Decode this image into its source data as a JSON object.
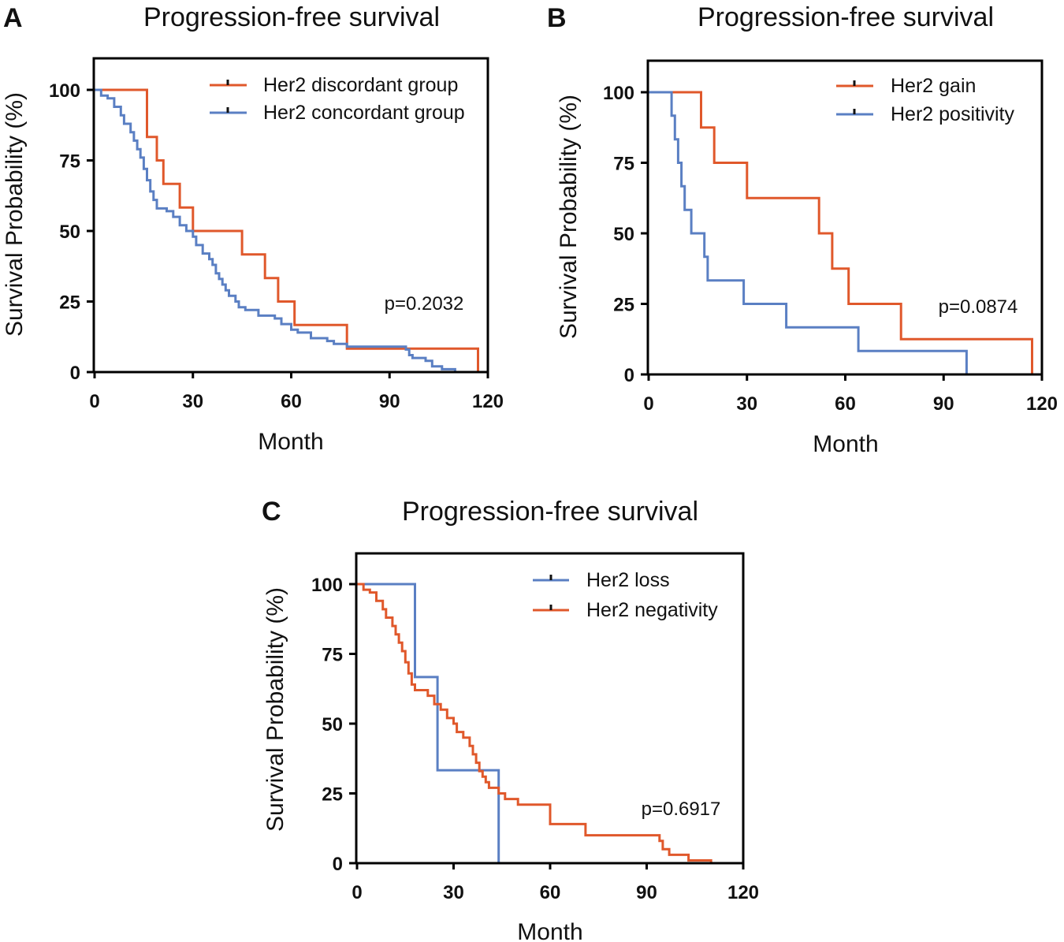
{
  "colors": {
    "orange": "#E0582B",
    "blue": "#5A7FC3",
    "axis": "#000000"
  },
  "chart_data": [
    {
      "type": "line",
      "panel": "A",
      "title": "Progression-free survival",
      "xlabel": "Month",
      "ylabel": "Survival Probability (%)",
      "xlim": [
        0,
        120
      ],
      "ylim": [
        0,
        110
      ],
      "xticks": [
        0,
        30,
        60,
        90,
        120
      ],
      "yticks": [
        0,
        25,
        50,
        75,
        100
      ],
      "p_value": "p=0.2032",
      "legend_position": "top-right",
      "series": [
        {
          "name": "Her2 discordant group",
          "color": "#E0582B",
          "points": [
            [
              0,
              100
            ],
            [
              16,
              100
            ],
            [
              16,
              83.3
            ],
            [
              19,
              83.3
            ],
            [
              19,
              75
            ],
            [
              21,
              75
            ],
            [
              21,
              66.7
            ],
            [
              26,
              66.7
            ],
            [
              26,
              58.3
            ],
            [
              30,
              58.3
            ],
            [
              30,
              50
            ],
            [
              45,
              50
            ],
            [
              45,
              41.7
            ],
            [
              52,
              41.7
            ],
            [
              52,
              33.3
            ],
            [
              56,
              33.3
            ],
            [
              56,
              25
            ],
            [
              61,
              25
            ],
            [
              61,
              16.7
            ],
            [
              77,
              16.7
            ],
            [
              77,
              8.3
            ],
            [
              117,
              8.3
            ],
            [
              117,
              0
            ]
          ]
        },
        {
          "name": "Her2 concordant group",
          "color": "#5A7FC3",
          "points": [
            [
              0,
              100
            ],
            [
              2,
              100
            ],
            [
              2,
              98
            ],
            [
              4,
              98
            ],
            [
              4,
              97
            ],
            [
              6,
              97
            ],
            [
              6,
              94
            ],
            [
              8,
              94
            ],
            [
              8,
              91
            ],
            [
              9,
              91
            ],
            [
              9,
              88
            ],
            [
              11,
              88
            ],
            [
              11,
              85
            ],
            [
              12,
              85
            ],
            [
              12,
              82
            ],
            [
              13,
              82
            ],
            [
              13,
              79
            ],
            [
              14,
              79
            ],
            [
              14,
              76
            ],
            [
              15,
              76
            ],
            [
              15,
              72
            ],
            [
              16,
              72
            ],
            [
              16,
              68
            ],
            [
              17,
              68
            ],
            [
              17,
              64
            ],
            [
              18,
              64
            ],
            [
              18,
              61
            ],
            [
              19,
              61
            ],
            [
              19,
              58
            ],
            [
              22,
              58
            ],
            [
              22,
              57
            ],
            [
              24,
              57
            ],
            [
              24,
              55
            ],
            [
              26,
              55
            ],
            [
              26,
              52
            ],
            [
              28,
              52
            ],
            [
              28,
              50
            ],
            [
              30,
              50
            ],
            [
              30,
              48
            ],
            [
              31,
              48
            ],
            [
              31,
              45
            ],
            [
              33,
              45
            ],
            [
              33,
              42
            ],
            [
              35,
              42
            ],
            [
              35,
              40
            ],
            [
              36,
              40
            ],
            [
              36,
              38
            ],
            [
              37,
              38
            ],
            [
              37,
              35
            ],
            [
              38,
              35
            ],
            [
              38,
              33
            ],
            [
              39,
              33
            ],
            [
              39,
              31
            ],
            [
              40,
              31
            ],
            [
              40,
              29
            ],
            [
              41,
              29
            ],
            [
              41,
              27
            ],
            [
              43,
              27
            ],
            [
              43,
              25
            ],
            [
              44,
              25
            ],
            [
              44,
              23
            ],
            [
              46,
              23
            ],
            [
              46,
              22
            ],
            [
              50,
              22
            ],
            [
              50,
              20
            ],
            [
              55,
              20
            ],
            [
              55,
              19
            ],
            [
              57,
              19
            ],
            [
              57,
              17
            ],
            [
              60,
              17
            ],
            [
              60,
              15
            ],
            [
              62,
              15
            ],
            [
              62,
              14
            ],
            [
              66,
              14
            ],
            [
              66,
              12
            ],
            [
              71,
              12
            ],
            [
              71,
              11
            ],
            [
              73,
              11
            ],
            [
              73,
              10
            ],
            [
              77,
              10
            ],
            [
              77,
              9
            ],
            [
              95,
              9
            ],
            [
              95,
              8
            ],
            [
              96,
              8
            ],
            [
              96,
              6
            ],
            [
              97,
              6
            ],
            [
              97,
              5
            ],
            [
              101,
              5
            ],
            [
              101,
              4
            ],
            [
              103,
              4
            ],
            [
              103,
              2
            ],
            [
              106,
              2
            ],
            [
              106,
              1
            ],
            [
              110,
              1
            ],
            [
              110,
              0
            ]
          ]
        }
      ]
    },
    {
      "type": "line",
      "panel": "B",
      "title": "Progression-free survival",
      "xlabel": "Month",
      "ylabel": "Survival Probability (%)",
      "xlim": [
        0,
        120
      ],
      "ylim": [
        0,
        110
      ],
      "xticks": [
        0,
        30,
        60,
        90,
        120
      ],
      "yticks": [
        0,
        25,
        50,
        75,
        100
      ],
      "p_value": "p=0.0874",
      "legend_position": "top-right",
      "series": [
        {
          "name": "Her2 gain",
          "color": "#E0582B",
          "points": [
            [
              0,
              100
            ],
            [
              16,
              100
            ],
            [
              16,
              87.5
            ],
            [
              20,
              87.5
            ],
            [
              20,
              75
            ],
            [
              30,
              75
            ],
            [
              30,
              62.5
            ],
            [
              52,
              62.5
            ],
            [
              52,
              50
            ],
            [
              56,
              50
            ],
            [
              56,
              37.5
            ],
            [
              61,
              37.5
            ],
            [
              61,
              25
            ],
            [
              77,
              25
            ],
            [
              77,
              12.5
            ],
            [
              117,
              12.5
            ],
            [
              117,
              0
            ]
          ]
        },
        {
          "name": "Her2 positivity",
          "color": "#5A7FC3",
          "points": [
            [
              0,
              100
            ],
            [
              7,
              100
            ],
            [
              7,
              91.7
            ],
            [
              8,
              91.7
            ],
            [
              8,
              83.3
            ],
            [
              9,
              83.3
            ],
            [
              9,
              75
            ],
            [
              10,
              75
            ],
            [
              10,
              66.7
            ],
            [
              11,
              66.7
            ],
            [
              11,
              58.3
            ],
            [
              13,
              58.3
            ],
            [
              13,
              50
            ],
            [
              17,
              50
            ],
            [
              17,
              41.7
            ],
            [
              18,
              41.7
            ],
            [
              18,
              33.3
            ],
            [
              29,
              33.3
            ],
            [
              29,
              25
            ],
            [
              42,
              25
            ],
            [
              42,
              16.7
            ],
            [
              64,
              16.7
            ],
            [
              64,
              8.3
            ],
            [
              97,
              8.3
            ],
            [
              97,
              0
            ]
          ]
        }
      ]
    },
    {
      "type": "line",
      "panel": "C",
      "title": "Progression-free survival",
      "xlabel": "Month",
      "ylabel": "Survival Probability (%)",
      "xlim": [
        0,
        120
      ],
      "ylim": [
        0,
        110
      ],
      "xticks": [
        0,
        30,
        60,
        90,
        120
      ],
      "yticks": [
        0,
        25,
        50,
        75,
        100
      ],
      "p_value": "p=0.6917",
      "legend_position": "top-right",
      "series": [
        {
          "name": "Her2 loss",
          "color": "#5A7FC3",
          "points": [
            [
              0,
              100
            ],
            [
              18,
              100
            ],
            [
              18,
              66.7
            ],
            [
              25,
              66.7
            ],
            [
              25,
              33.3
            ],
            [
              44,
              33.3
            ],
            [
              44,
              0
            ]
          ]
        },
        {
          "name": "Her2 negativity",
          "color": "#E0582B",
          "points": [
            [
              0,
              100
            ],
            [
              2,
              100
            ],
            [
              2,
              98
            ],
            [
              4,
              98
            ],
            [
              4,
              97
            ],
            [
              6,
              97
            ],
            [
              6,
              94
            ],
            [
              8,
              94
            ],
            [
              8,
              91
            ],
            [
              9,
              91
            ],
            [
              9,
              88
            ],
            [
              11,
              88
            ],
            [
              11,
              85
            ],
            [
              12,
              85
            ],
            [
              12,
              82
            ],
            [
              13,
              82
            ],
            [
              13,
              79
            ],
            [
              14,
              79
            ],
            [
              14,
              76
            ],
            [
              15,
              76
            ],
            [
              15,
              72
            ],
            [
              16,
              72
            ],
            [
              16,
              68
            ],
            [
              17,
              68
            ],
            [
              17,
              64
            ],
            [
              18,
              64
            ],
            [
              18,
              62
            ],
            [
              22,
              62
            ],
            [
              22,
              60
            ],
            [
              24,
              60
            ],
            [
              24,
              57
            ],
            [
              26,
              57
            ],
            [
              26,
              55
            ],
            [
              28,
              55
            ],
            [
              28,
              52
            ],
            [
              30,
              52
            ],
            [
              30,
              50
            ],
            [
              31,
              50
            ],
            [
              31,
              47
            ],
            [
              33,
              47
            ],
            [
              33,
              45
            ],
            [
              35,
              45
            ],
            [
              35,
              42
            ],
            [
              36,
              42
            ],
            [
              36,
              39
            ],
            [
              37,
              39
            ],
            [
              37,
              36
            ],
            [
              38,
              36
            ],
            [
              38,
              33
            ],
            [
              39,
              33
            ],
            [
              39,
              31
            ],
            [
              40,
              31
            ],
            [
              40,
              29
            ],
            [
              41,
              29
            ],
            [
              41,
              27
            ],
            [
              44,
              27
            ],
            [
              44,
              25
            ],
            [
              46,
              25
            ],
            [
              46,
              23
            ],
            [
              50,
              23
            ],
            [
              50,
              21
            ],
            [
              60,
              21
            ],
            [
              60,
              14
            ],
            [
              71,
              14
            ],
            [
              71,
              10
            ],
            [
              94,
              10
            ],
            [
              94,
              8
            ],
            [
              95,
              8
            ],
            [
              95,
              5
            ],
            [
              97,
              5
            ],
            [
              97,
              3
            ],
            [
              103,
              3
            ],
            [
              103,
              1
            ],
            [
              110,
              1
            ],
            [
              110,
              0
            ]
          ]
        }
      ]
    }
  ]
}
